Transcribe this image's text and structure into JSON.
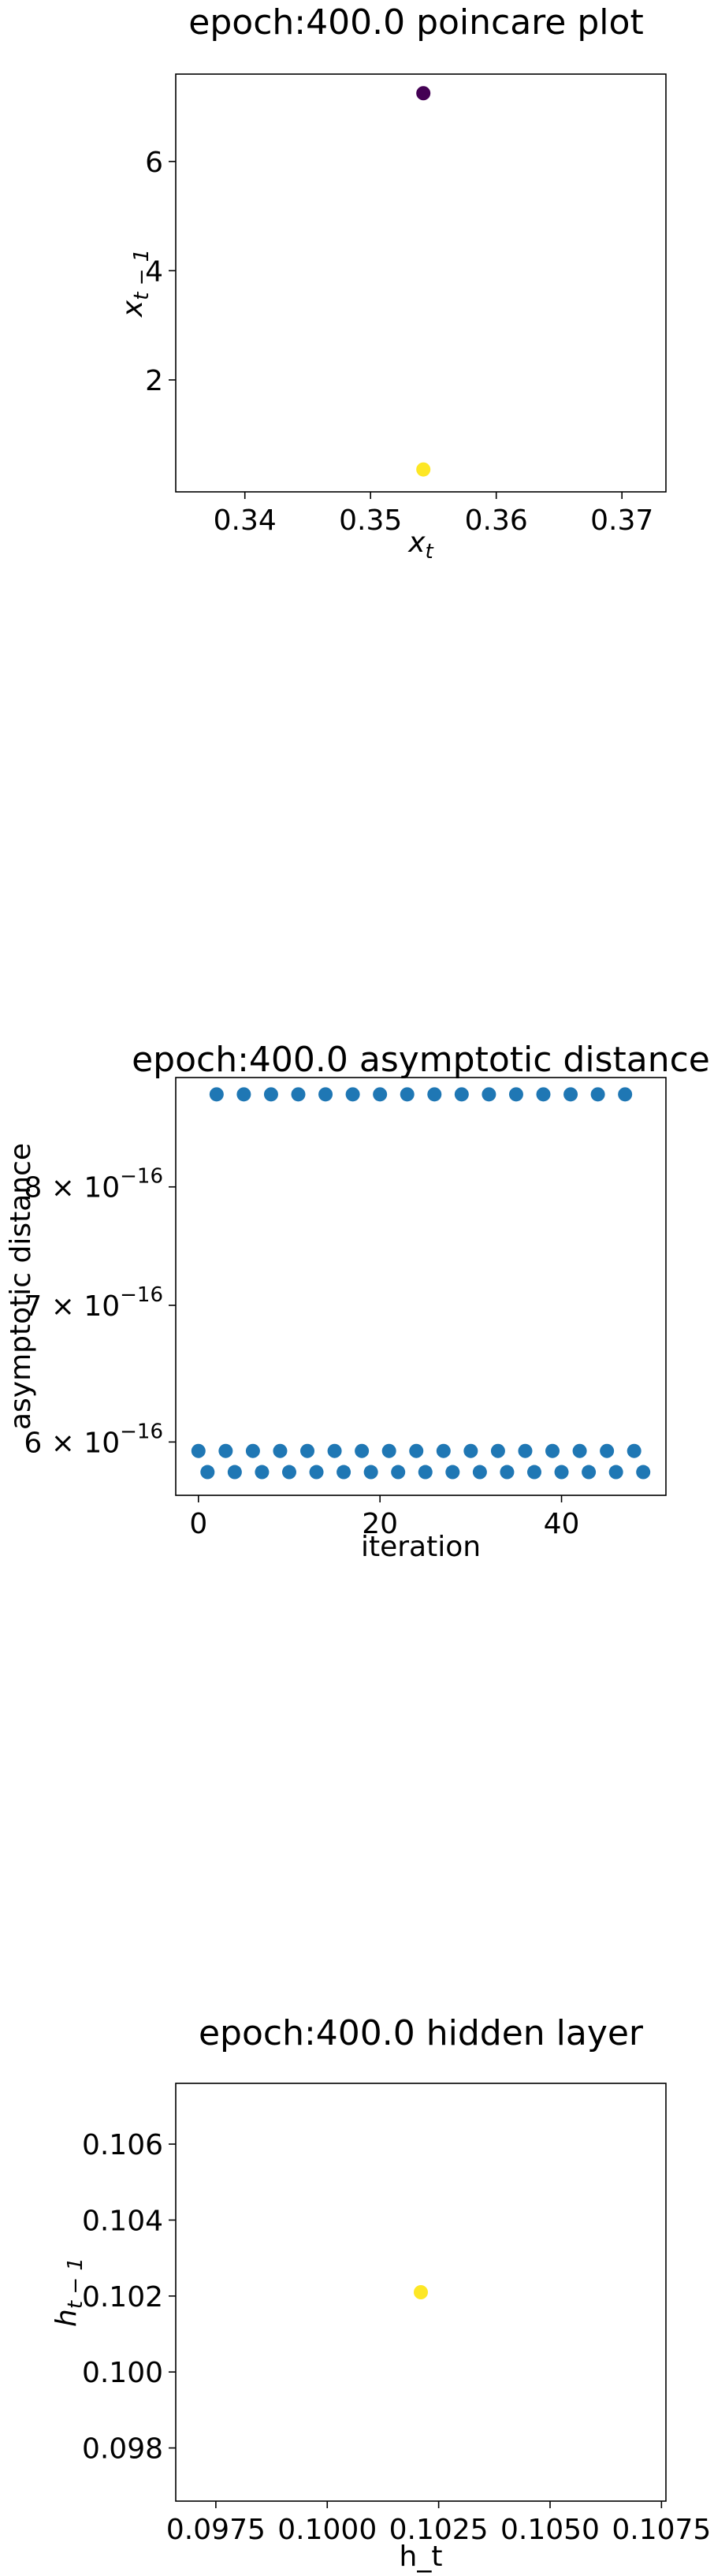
{
  "chart_data": [
    {
      "type": "scatter",
      "title": "epoch:400.0 poincare plot",
      "xlabel_base": "x",
      "xlabel_sub": "t",
      "ylabel_base": "x",
      "ylabel_sub": "t − 1",
      "xlim": [
        0.3345,
        0.3735
      ],
      "ylim": [
        -0.05,
        7.6
      ],
      "xticks": [
        0.34,
        0.35,
        0.36,
        0.37
      ],
      "xtick_labels": [
        "0.34",
        "0.35",
        "0.36",
        "0.37"
      ],
      "yticks": [
        2,
        4,
        6
      ],
      "ytick_labels": [
        "2",
        "4",
        "6"
      ],
      "points": [
        {
          "x": 0.3542,
          "y": 7.25,
          "color": "#440154"
        },
        {
          "x": 0.3542,
          "y": 0.36,
          "color": "#fde725"
        }
      ]
    },
    {
      "type": "scatter",
      "title": "epoch:400.0 asymptotic distance",
      "xlabel": "iteration",
      "ylabel": "asymptotic distance",
      "yscale": "log",
      "xlim": [
        -2.5,
        51.5
      ],
      "ylim": [
        5.65e-16,
        9.05e-16
      ],
      "xticks": [
        0,
        20,
        40
      ],
      "xtick_labels": [
        "0",
        "20",
        "40"
      ],
      "yticks": [
        6e-16,
        7e-16,
        8e-16
      ],
      "ytick_labels": [
        {
          "mantissa": "6 × 10",
          "exponent": "−16"
        },
        {
          "mantissa": "7 × 10",
          "exponent": "−16"
        },
        {
          "mantissa": "8 × 10",
          "exponent": "−16"
        }
      ],
      "series_color": "#1f77b4",
      "levels": {
        "high": 8.88e-16,
        "mid": 5.94e-16,
        "low": 5.8e-16
      },
      "pattern_note": "period-3 cycle: x≡2 (mod 3) high, x≡0 (mod 3) mid, x≡1 (mod 3) low",
      "x_values": [
        0,
        1,
        2,
        3,
        4,
        5,
        6,
        7,
        8,
        9,
        10,
        11,
        12,
        13,
        14,
        15,
        16,
        17,
        18,
        19,
        20,
        21,
        22,
        23,
        24,
        25,
        26,
        27,
        28,
        29,
        30,
        31,
        32,
        33,
        34,
        35,
        36,
        37,
        38,
        39,
        40,
        41,
        42,
        43,
        44,
        45,
        46,
        47,
        48,
        49
      ],
      "y_values": [
        5.94e-16,
        5.8e-16,
        8.88e-16,
        5.94e-16,
        5.8e-16,
        8.88e-16,
        5.94e-16,
        5.8e-16,
        8.88e-16,
        5.94e-16,
        5.8e-16,
        8.88e-16,
        5.94e-16,
        5.8e-16,
        8.88e-16,
        5.94e-16,
        5.8e-16,
        8.88e-16,
        5.94e-16,
        5.8e-16,
        8.88e-16,
        5.94e-16,
        5.8e-16,
        8.88e-16,
        5.94e-16,
        5.8e-16,
        8.88e-16,
        5.94e-16,
        5.8e-16,
        8.88e-16,
        5.94e-16,
        5.8e-16,
        8.88e-16,
        5.94e-16,
        5.8e-16,
        8.88e-16,
        5.94e-16,
        5.8e-16,
        8.88e-16,
        5.94e-16,
        5.8e-16,
        8.88e-16,
        5.94e-16,
        5.8e-16,
        8.88e-16,
        5.94e-16,
        5.8e-16,
        8.88e-16,
        5.94e-16,
        5.8e-16
      ]
    },
    {
      "type": "scatter",
      "title": "epoch:400.0 hidden layer",
      "xlabel": "h_t",
      "ylabel_base": "h",
      "ylabel_sub": "t − 1",
      "xlim": [
        0.0966,
        0.1076
      ],
      "ylim": [
        0.0966,
        0.1076
      ],
      "xticks": [
        0.0975,
        0.1,
        0.1025,
        0.105,
        0.1075
      ],
      "xtick_labels": [
        "0.0975",
        "0.1000",
        "0.1025",
        "0.1050",
        "0.1075"
      ],
      "yticks": [
        0.098,
        0.1,
        0.102,
        0.104,
        0.106
      ],
      "ytick_labels": [
        "0.098",
        "0.100",
        "0.102",
        "0.104",
        "0.106"
      ],
      "points": [
        {
          "x": 0.1021,
          "y": 0.1021,
          "color": "#fde725"
        }
      ]
    }
  ]
}
